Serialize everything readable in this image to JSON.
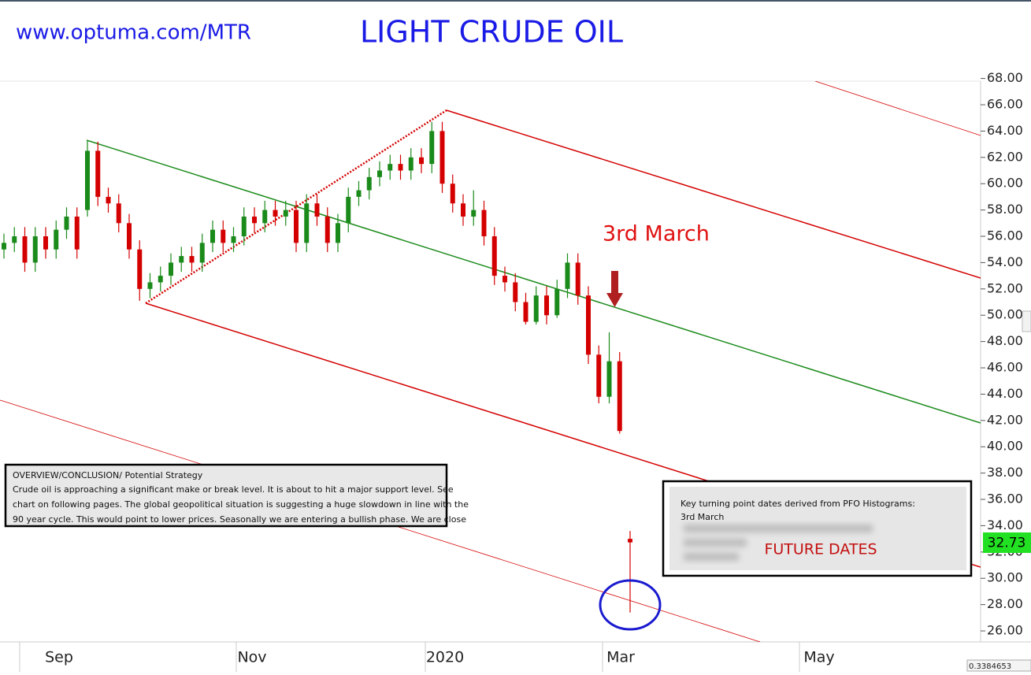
{
  "chart_data": {
    "type": "candlestick",
    "site": "www.optuma.com/MTR",
    "title": "LIGHT CRUDE OIL",
    "annotation": "3rd March",
    "overview": {
      "lines": [
        "OVERVIEW/CONCLUSION/ Potential Strategy",
        "Crude oil is approaching a significant make or break level. It is about to hit a major support level. See",
        "chart on following pages. The global geopolitical situation is suggesting a huge slowdown in line with the",
        "90 year cycle. This would point to lower prices. Seasonally we are entering a bullish phase. We are close"
      ]
    },
    "turning_points": {
      "lines": [
        "Key turning point dates derived from PFO Histograms:",
        "3rd March"
      ],
      "future": "FUTURE DATES"
    },
    "xticks": [
      "Sep",
      "Nov",
      "2020",
      "Mar",
      "May"
    ],
    "ylim": [
      25.2,
      68
    ],
    "yticks": [
      {
        "value": 26,
        "label": "26.00"
      },
      {
        "value": 28,
        "label": "28.00"
      },
      {
        "value": 30,
        "label": "30.00"
      },
      {
        "value": 32,
        "label": "32.00"
      },
      {
        "value": 34,
        "label": "34.00"
      },
      {
        "value": 36,
        "label": "36.00"
      },
      {
        "value": 38,
        "label": "38.00"
      },
      {
        "value": 40,
        "label": "40.00"
      },
      {
        "value": 42,
        "label": "42.00"
      },
      {
        "value": 44,
        "label": "44.00"
      },
      {
        "value": 46,
        "label": "46.00"
      },
      {
        "value": 48,
        "label": "48.00"
      },
      {
        "value": 50,
        "label": "50.00"
      },
      {
        "value": 52,
        "label": "52.00"
      },
      {
        "value": 54,
        "label": "54.00"
      },
      {
        "value": 56,
        "label": "56.00"
      },
      {
        "value": 58,
        "label": "58.00"
      },
      {
        "value": 60,
        "label": "60.00"
      },
      {
        "value": 62,
        "label": "62.00"
      },
      {
        "value": 64,
        "label": "64.00"
      },
      {
        "value": 66,
        "label": "66.00"
      },
      {
        "value": 68,
        "label": "68.00"
      }
    ],
    "up_color": "#1a8a1a",
    "down_color": "#d40000",
    "last_price": 32.73,
    "scale_readout": "0.3384653",
    "candles": {
      "open": [
        55,
        55.5,
        56,
        54,
        56,
        55,
        56.5,
        57.5,
        58,
        62.5,
        59,
        58.5,
        57,
        55,
        52,
        52.5,
        53,
        54,
        54.5,
        54,
        55.5,
        56.5,
        55.5,
        56,
        57.5,
        57,
        58,
        57.5,
        58,
        55.5,
        58.5,
        57.5,
        55.5,
        57,
        59,
        59.5,
        60.5,
        61,
        61.5,
        61,
        62,
        61.5,
        64,
        60,
        58.5,
        57.5,
        58,
        56,
        53,
        52.5,
        51,
        49.5,
        51.5,
        50,
        52,
        54,
        51.5,
        47,
        43.8,
        46.5,
        33
      ],
      "high": [
        56.2,
        56.7,
        56.7,
        56.7,
        56.7,
        57.2,
        58.2,
        58.2,
        63.3,
        63.2,
        59.7,
        59.2,
        57.7,
        55.7,
        53.2,
        53.7,
        54.7,
        55.2,
        55.2,
        56.2,
        57.2,
        57.2,
        56.7,
        58.2,
        58.2,
        58.7,
        58.7,
        58.7,
        58.7,
        59.2,
        59.2,
        58.2,
        57.7,
        59.7,
        60.2,
        61.2,
        61.7,
        62.2,
        62.2,
        62.7,
        62.7,
        64.7,
        64.7,
        60.7,
        59.2,
        59.5,
        58.7,
        56.7,
        53.7,
        53.2,
        51.7,
        52.2,
        52.2,
        52.7,
        54.7,
        54.7,
        52.2,
        47.7,
        48.7,
        47.2,
        33.6
      ],
      "low": [
        54.3,
        54.8,
        53.3,
        53.3,
        54.3,
        54.3,
        55.8,
        54.3,
        57.5,
        58.3,
        57.8,
        56.3,
        54.3,
        51.1,
        51.3,
        51.8,
        52.3,
        53.3,
        53.3,
        53.3,
        54.8,
        54.8,
        54.8,
        55.3,
        56.3,
        56.3,
        56.8,
        56.8,
        54.8,
        54.8,
        56.8,
        54.8,
        54.8,
        56.3,
        58.3,
        58.8,
        59.8,
        60.3,
        60.3,
        60.3,
        60.8,
        60.8,
        59.3,
        57.8,
        56.8,
        56.8,
        55.3,
        52.3,
        51.8,
        50.3,
        49.3,
        49.3,
        49.3,
        49.8,
        51.3,
        50.8,
        46.3,
        43.3,
        43.3,
        41,
        27.4
      ],
      "close": [
        55.5,
        56,
        54,
        56,
        55,
        56.5,
        57.5,
        55,
        62.5,
        59,
        58.5,
        57,
        55,
        52,
        52.5,
        53,
        54,
        54.5,
        54,
        55.5,
        56.5,
        55.5,
        56,
        57.5,
        57,
        58,
        57.5,
        58,
        55.5,
        58.5,
        57.5,
        55.5,
        57,
        59,
        59.5,
        60.5,
        61,
        61.5,
        61,
        62,
        61.5,
        64,
        60,
        58.5,
        57.5,
        58,
        56,
        53,
        52.5,
        51,
        49.5,
        51.5,
        50,
        52,
        54,
        51.5,
        47,
        43.8,
        46.5,
        41.2,
        32.73
      ]
    }
  }
}
